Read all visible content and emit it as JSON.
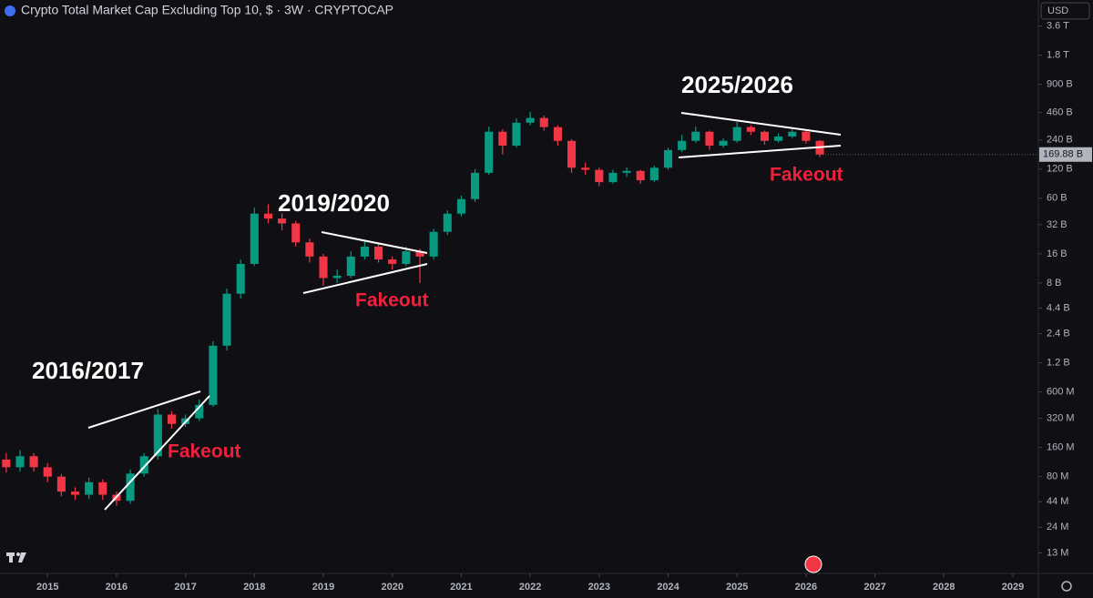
{
  "chart_data": {
    "type": "candlestick",
    "title": "Crypto Total Market Cap Excluding Top 10, $ · 3W · CRYPTOCAP",
    "currency": "USD",
    "log_scale": true,
    "grid": false,
    "up_color": "#089981",
    "down_color": "#f23645",
    "x": [
      2014.4,
      2014.6,
      2014.8,
      2015.0,
      2015.2,
      2015.4,
      2015.6,
      2015.8,
      2016.0,
      2016.2,
      2016.4,
      2016.6,
      2016.8,
      2017.0,
      2017.2,
      2017.4,
      2017.6,
      2017.8,
      2018.0,
      2018.2,
      2018.4,
      2018.6,
      2018.8,
      2019.0,
      2019.2,
      2019.4,
      2019.6,
      2019.8,
      2020.0,
      2020.2,
      2020.4,
      2020.6,
      2020.8,
      2021.0,
      2021.2,
      2021.4,
      2021.6,
      2021.8,
      2022.0,
      2022.2,
      2022.4,
      2022.6,
      2022.8,
      2023.0,
      2023.2,
      2023.4,
      2023.6,
      2023.8,
      2024.0,
      2024.2,
      2024.4,
      2024.6,
      2024.8,
      2025.0,
      2025.2,
      2025.4,
      2025.6,
      2025.8,
      2026.0,
      2026.2
    ],
    "open": [
      0.12,
      0.1,
      0.13,
      0.1,
      0.08,
      0.056,
      0.052,
      0.07,
      0.052,
      0.045,
      0.086,
      0.13,
      0.35,
      0.28,
      0.32,
      0.44,
      1.8,
      6.2,
      12.6,
      41.6,
      37,
      33,
      21,
      15,
      9,
      9.5,
      15,
      19,
      14,
      12.6,
      17,
      15,
      27,
      41.6,
      58.8,
      110,
      292,
      210,
      362,
      405,
      326,
      235,
      124,
      118,
      88,
      110,
      115,
      92,
      124,
      189,
      235,
      292,
      210,
      235,
      326,
      292,
      235,
      261,
      292,
      235
    ],
    "high": [
      0.14,
      0.15,
      0.14,
      0.11,
      0.085,
      0.062,
      0.078,
      0.075,
      0.056,
      0.095,
      0.14,
      0.4,
      0.38,
      0.35,
      0.5,
      2,
      7,
      14,
      48,
      52,
      42,
      35,
      23,
      16,
      11,
      17,
      22,
      20,
      15,
      19,
      18,
      29,
      45,
      64,
      120,
      330,
      310,
      400,
      470,
      430,
      340,
      245,
      140,
      125,
      118,
      125,
      118,
      130,
      200,
      270,
      330,
      300,
      250,
      370,
      340,
      300,
      280,
      310,
      300,
      240
    ],
    "low": [
      0.088,
      0.09,
      0.09,
      0.07,
      0.05,
      0.046,
      0.047,
      0.046,
      0.04,
      0.042,
      0.08,
      0.12,
      0.25,
      0.26,
      0.3,
      0.42,
      1.6,
      5.5,
      12,
      33,
      28,
      19,
      13,
      7.5,
      8,
      9,
      14,
      13,
      11,
      12,
      8,
      14,
      25,
      39,
      55,
      105,
      170,
      200,
      340,
      300,
      210,
      110,
      105,
      80,
      85,
      100,
      85,
      88,
      118,
      180,
      225,
      190,
      200,
      225,
      270,
      215,
      225,
      250,
      220,
      160
    ],
    "close": [
      0.1,
      0.13,
      0.1,
      0.08,
      0.056,
      0.052,
      0.07,
      0.052,
      0.045,
      0.086,
      0.13,
      0.35,
      0.28,
      0.32,
      0.44,
      1.8,
      6.2,
      12.6,
      41.6,
      37,
      33,
      21,
      15,
      9,
      9.5,
      15,
      19,
      14,
      12.6,
      17,
      15,
      27,
      41.6,
      58.8,
      110,
      292,
      210,
      362,
      405,
      326,
      235,
      124,
      118,
      88,
      110,
      115,
      92,
      124,
      189,
      235,
      292,
      210,
      235,
      326,
      292,
      235,
      261,
      292,
      235,
      169.88
    ],
    "last_value_label": "169.88 B",
    "xlim": [
      2014.31,
      2029.37
    ],
    "xticks": [
      2015,
      2016,
      2017,
      2018,
      2019,
      2020,
      2021,
      2022,
      2023,
      2024,
      2025,
      2026,
      2027,
      2028,
      2029
    ],
    "ylim": [
      0.008,
      6700
    ],
    "yticks": [
      {
        "value": 3600,
        "label": "3.6 T"
      },
      {
        "value": 1800,
        "label": "1.8 T"
      },
      {
        "value": 900,
        "label": "900 B"
      },
      {
        "value": 460,
        "label": "460 B"
      },
      {
        "value": 240,
        "label": "240 B"
      },
      {
        "value": 120,
        "label": "120 B"
      },
      {
        "value": 60,
        "label": "60 B"
      },
      {
        "value": 32,
        "label": "32 B"
      },
      {
        "value": 16,
        "label": "16 B"
      },
      {
        "value": 8,
        "label": "8 B"
      },
      {
        "value": 4.4,
        "label": "4.4 B"
      },
      {
        "value": 2.4,
        "label": "2.4 B"
      },
      {
        "value": 1.2,
        "label": "1.2 B"
      },
      {
        "value": 0.6,
        "label": "600 M"
      },
      {
        "value": 0.32,
        "label": "320 M"
      },
      {
        "value": 0.16,
        "label": "160 M"
      },
      {
        "value": 0.08,
        "label": "80 M"
      },
      {
        "value": 0.044,
        "label": "44 M"
      },
      {
        "value": 0.024,
        "label": "24 M"
      },
      {
        "value": 0.013,
        "label": "13 M"
      }
    ],
    "annotations": [
      "2016/2017",
      "Fakeout",
      "2019/2020",
      "Fakeout",
      "2025/2026",
      "Fakeout"
    ]
  }
}
